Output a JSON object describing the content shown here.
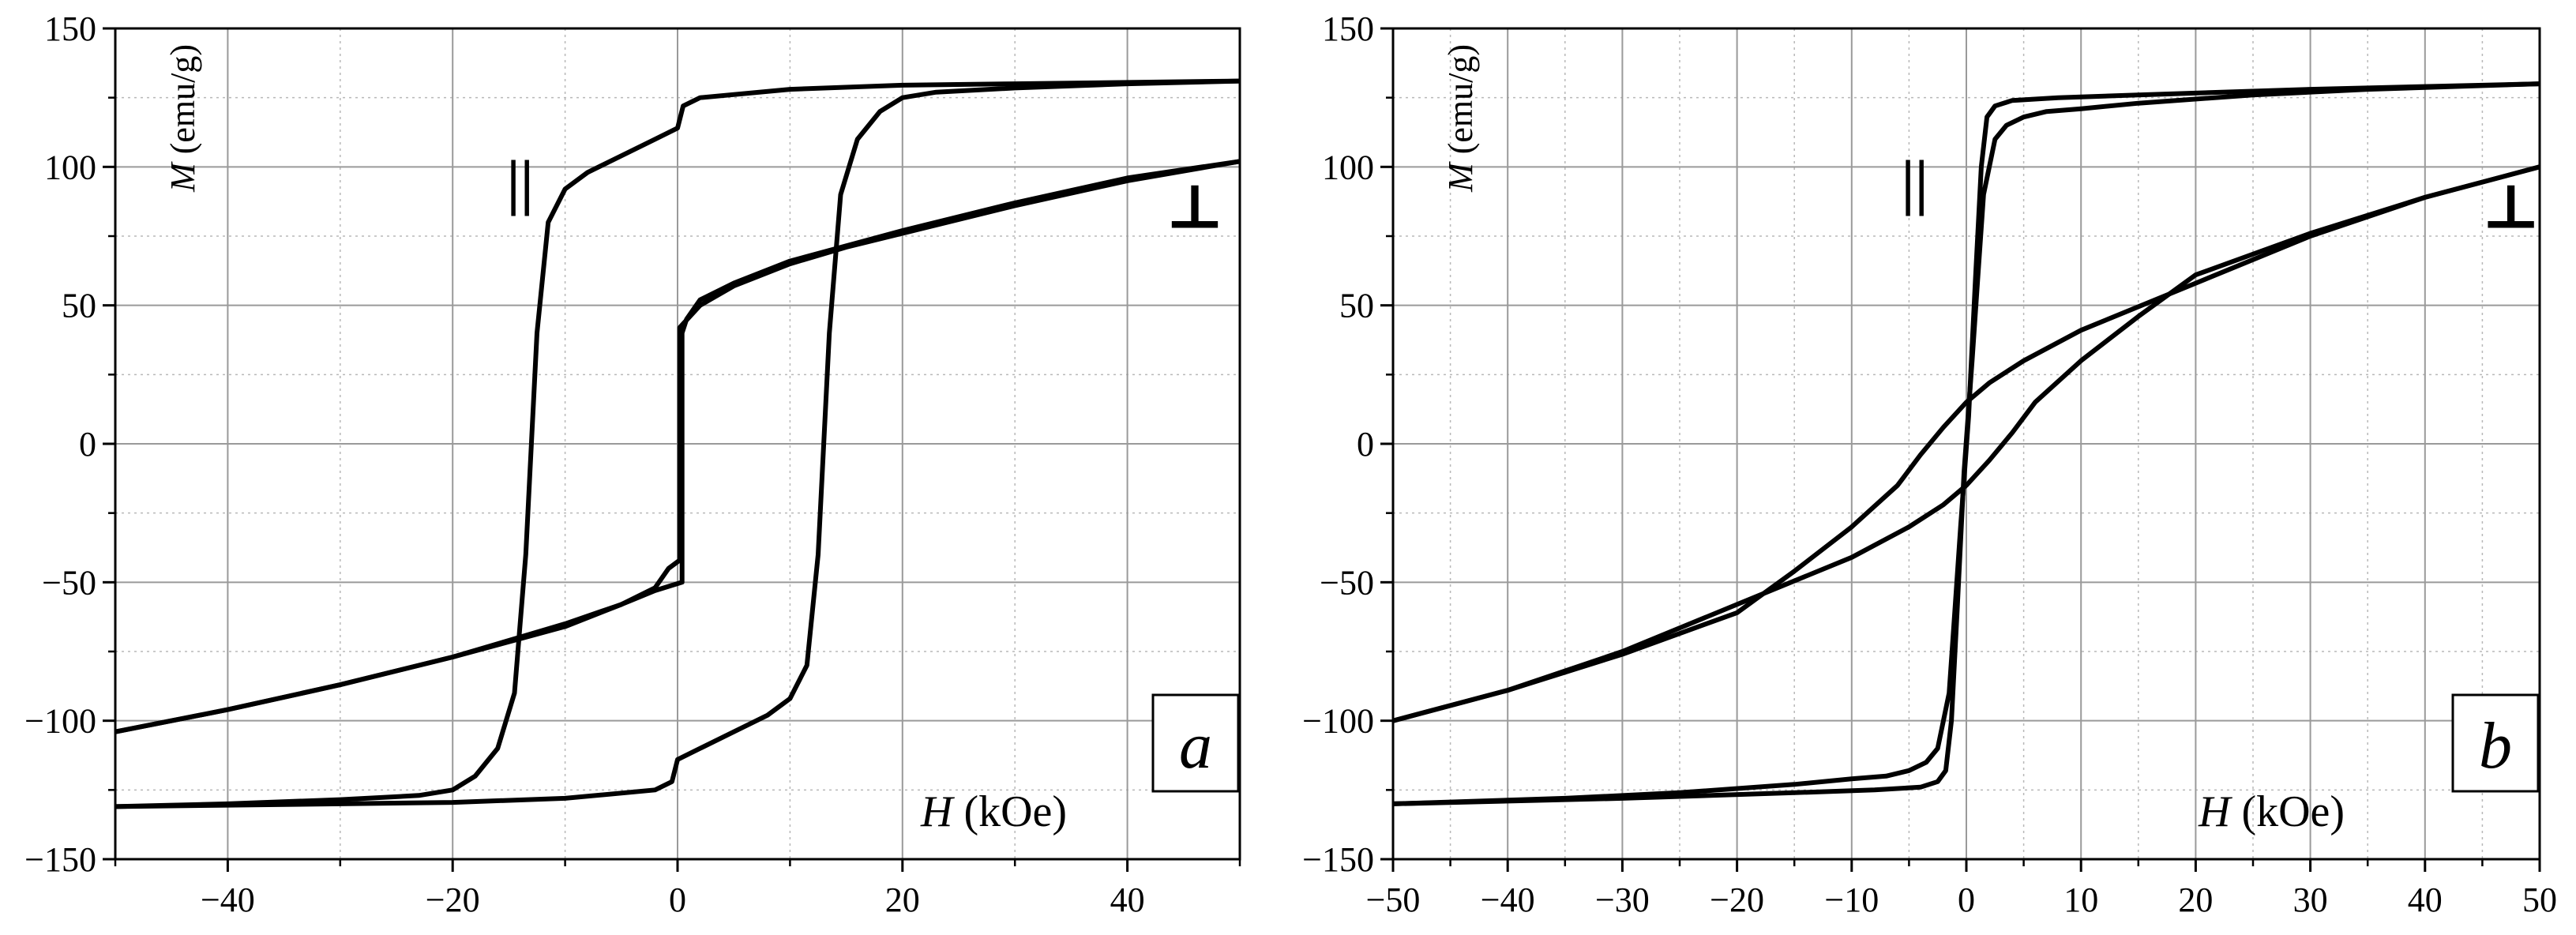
{
  "chart_data": [
    {
      "type": "line",
      "panel_label": "a",
      "xlabel_symbol": "H",
      "xlabel_unit": " (kOe)",
      "ylabel_symbol": "M",
      "ylabel_unit": " (emu/g)",
      "xlim": [
        -50,
        50
      ],
      "ylim": [
        -150,
        150
      ],
      "xticks": [
        -40,
        -20,
        0,
        20,
        40
      ],
      "yticks": [
        -150,
        -100,
        -50,
        0,
        50,
        100,
        150
      ],
      "grid": true,
      "annotations": [
        {
          "text": "||",
          "x": -14,
          "y": 87
        },
        {
          "text": "⊥",
          "x": 46,
          "y": 78
        }
      ],
      "series": [
        {
          "x": [
            50,
            40,
            30,
            20,
            10,
            2,
            0.5,
            0,
            -2,
            -5,
            -8,
            -10,
            -11.5,
            -12.5,
            -13,
            -13.5,
            -14.5,
            -16,
            -18,
            -20,
            -23,
            -30,
            -40,
            -50
          ],
          "y": [
            131,
            130.5,
            130,
            129.5,
            128,
            125,
            122,
            114,
            110,
            104,
            98,
            92,
            80,
            40,
            0,
            -40,
            -90,
            -110,
            -120,
            -125,
            -127,
            -128.5,
            -130,
            -131
          ]
        },
        {
          "x": [
            -50,
            -40,
            -30,
            -20,
            -10,
            -2,
            -0.5,
            0,
            2,
            5,
            8,
            10,
            11.5,
            12.5,
            13,
            13.5,
            14.5,
            16,
            18,
            20,
            23,
            30,
            40,
            50
          ],
          "y": [
            -131,
            -130.5,
            -130,
            -129.5,
            -128,
            -125,
            -122,
            -114,
            -110,
            -104,
            -98,
            -92,
            -80,
            -40,
            0,
            40,
            90,
            110,
            120,
            125,
            127,
            128.5,
            130,
            131
          ]
        },
        {
          "x": [
            50,
            40,
            30,
            20,
            10,
            5,
            2,
            0.8,
            0.4,
            0.4,
            -2,
            -5,
            -10,
            -15,
            -20,
            -30,
            -40,
            -50
          ],
          "y": [
            102,
            96,
            87,
            77,
            66,
            58,
            52,
            45,
            40,
            -50,
            -53,
            -58,
            -65,
            -71,
            -77,
            -87,
            -96,
            -104
          ]
        },
        {
          "x": [
            -50,
            -40,
            -30,
            -20,
            -10,
            -5,
            -2,
            -0.8,
            0.2,
            0.2,
            2,
            5,
            10,
            15,
            20,
            30,
            40,
            50
          ],
          "y": [
            -104,
            -96,
            -87,
            -77,
            -66,
            -58,
            -52,
            -45,
            -42,
            42,
            50,
            57,
            65,
            71,
            76,
            86,
            95,
            102
          ]
        }
      ]
    },
    {
      "type": "line",
      "panel_label": "b",
      "xlabel_symbol": "H",
      "xlabel_unit": " (kOe)",
      "ylabel_symbol": "M",
      "ylabel_unit": " (emu/g)",
      "xlim": [
        -50,
        50
      ],
      "ylim": [
        -150,
        150
      ],
      "xticks": [
        -50,
        -40,
        -30,
        -20,
        -10,
        0,
        10,
        20,
        30,
        40,
        50
      ],
      "yticks": [
        -150,
        -100,
        -50,
        0,
        50,
        100,
        150
      ],
      "grid": true,
      "annotations": [
        {
          "text": "||",
          "x": -4.5,
          "y": 87
        },
        {
          "text": "⊥",
          "x": 47.5,
          "y": 78
        }
      ],
      "series": [
        {
          "x": [
            50,
            30,
            15,
            8,
            4,
            2.5,
            1.8,
            1.3,
            0.8,
            0.2,
            -0.5,
            -1,
            -1.5,
            -2.5,
            -3.5,
            -5,
            -7,
            -10,
            -15,
            -25,
            -35,
            -50
          ],
          "y": [
            130,
            128,
            126,
            125,
            124,
            122,
            118,
            100,
            60,
            10,
            -30,
            -60,
            -90,
            -110,
            -115,
            -118,
            -120,
            -121,
            -123,
            -126,
            -128,
            -130
          ]
        },
        {
          "x": [
            -50,
            -30,
            -15,
            -8,
            -4,
            -2.5,
            -1.8,
            -1.3,
            -0.8,
            -0.2,
            0.5,
            1,
            1.5,
            2.5,
            3.5,
            5,
            7,
            10,
            15,
            25,
            35,
            50
          ],
          "y": [
            -130,
            -128,
            -126,
            -125,
            -124,
            -122,
            -118,
            -100,
            -60,
            -10,
            30,
            60,
            90,
            110,
            115,
            118,
            120,
            121,
            123,
            126,
            128,
            130
          ]
        },
        {
          "x": [
            50,
            40,
            30,
            20,
            10,
            5,
            2,
            0,
            -2,
            -4,
            -6,
            -10,
            -15,
            -20,
            -30,
            -40,
            -50
          ],
          "y": [
            100,
            89,
            75,
            58,
            41,
            30,
            22,
            15,
            6,
            -4,
            -15,
            -30,
            -46,
            -61,
            -76,
            -89,
            -100
          ]
        },
        {
          "x": [
            -50,
            -40,
            -30,
            -20,
            -10,
            -5,
            -2,
            0,
            2,
            4,
            6,
            10,
            15,
            20,
            30,
            40,
            50
          ],
          "y": [
            -100,
            -89,
            -75,
            -58,
            -41,
            -30,
            -22,
            -15,
            -6,
            4,
            15,
            30,
            46,
            61,
            76,
            89,
            100
          ]
        }
      ]
    }
  ]
}
